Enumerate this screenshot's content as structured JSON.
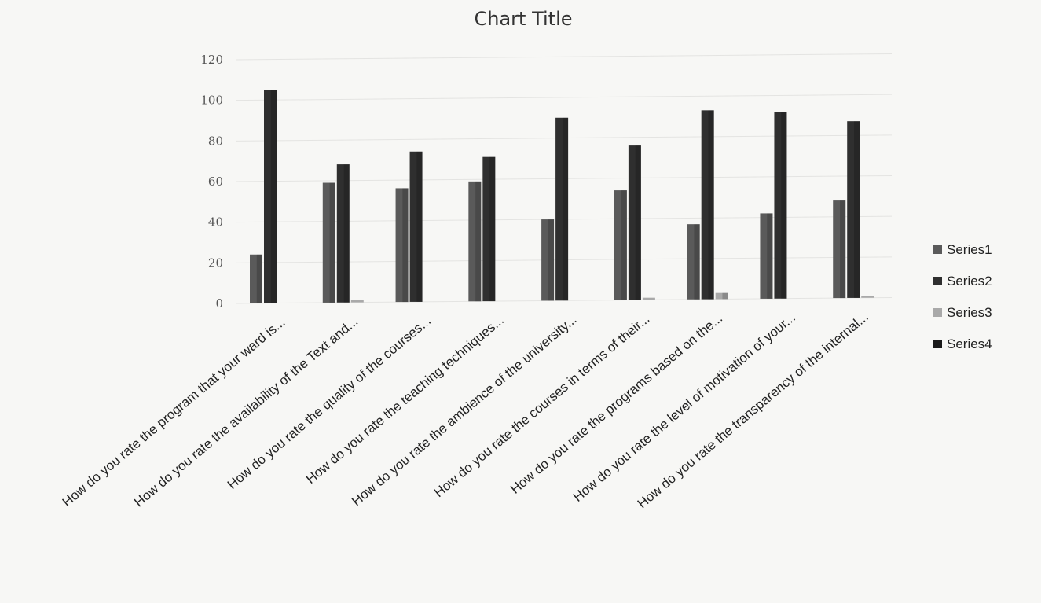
{
  "chart_data": {
    "type": "bar",
    "title": "Chart Title",
    "xlabel": "",
    "ylabel": "",
    "ylim": [
      0,
      120
    ],
    "yticks": [
      0,
      20,
      40,
      60,
      80,
      100,
      120
    ],
    "grid": true,
    "legend_position": "right",
    "categories": [
      "How do you rate the program that your ward is...",
      "How do you rate the availability of the Text and...",
      "How do you rate the quality of the courses...",
      "How do you rate the teaching techniques...",
      "How do you rate the ambience of the university...",
      "How do you rate the courses in terms of their...",
      "How do you rate the programs based on the...",
      "How do you rate the level of motivation of your...",
      "How do you rate the transparency of the internal..."
    ],
    "series": [
      {
        "name": "Series1",
        "color": "#5a5a5a",
        "values": [
          24,
          59,
          56,
          59,
          40,
          54,
          37,
          42,
          48
        ]
      },
      {
        "name": "Series2",
        "color": "#2f2f2f",
        "values": [
          105,
          68,
          74,
          71,
          90,
          76,
          93,
          92,
          87
        ]
      },
      {
        "name": "Series3",
        "color": "#a9a9a9",
        "values": [
          0,
          1,
          0,
          0,
          0,
          1,
          3,
          0,
          1
        ]
      },
      {
        "name": "Series4",
        "color": "#1a1a1a",
        "values": [
          0,
          0,
          0,
          0,
          0,
          0,
          0,
          0,
          0
        ]
      }
    ]
  }
}
